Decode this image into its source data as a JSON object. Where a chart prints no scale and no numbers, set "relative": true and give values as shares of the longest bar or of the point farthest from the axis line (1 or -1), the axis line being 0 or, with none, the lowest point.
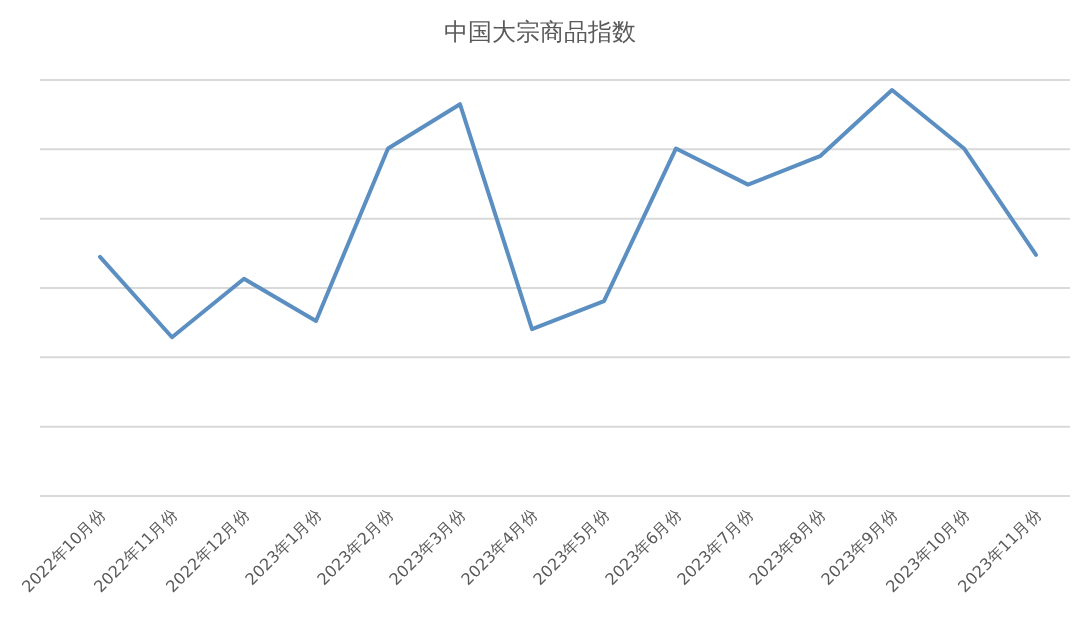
{
  "chart_data": {
    "type": "line",
    "title": "中国大宗商品指数",
    "relative": true,
    "grid": "y",
    "categories": [
      "2022年10月份",
      "2022年11月份",
      "2022年12月份",
      "2023年1月份",
      "2023年2月份",
      "2023年3月份",
      "2023年4月份",
      "2023年5月份",
      "2023年6月份",
      "2023年7月份",
      "2023年8月份",
      "2023年9月份",
      "2023年10月份",
      "2023年11月份"
    ],
    "series": [
      {
        "color": "#5b8fc2",
        "values": [
          0.589,
          0.391,
          0.535,
          0.431,
          0.856,
          0.965,
          0.411,
          0.48,
          0.856,
          0.767,
          0.837,
          1,
          0.856,
          0.594
        ]
      }
    ],
    "marker": "none",
    "line_style": "solid"
  }
}
